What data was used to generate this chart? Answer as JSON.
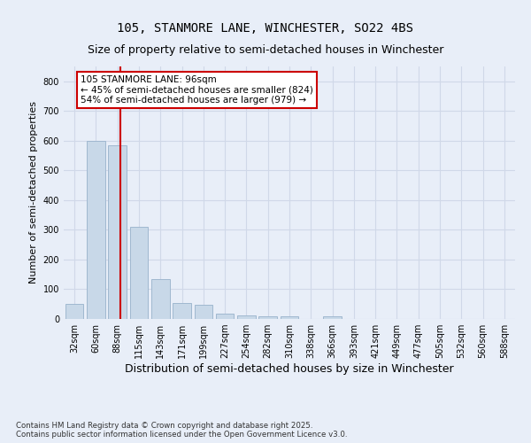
{
  "title_line1": "105, STANMORE LANE, WINCHESTER, SO22 4BS",
  "title_line2": "Size of property relative to semi-detached houses in Winchester",
  "xlabel": "Distribution of semi-detached houses by size in Winchester",
  "ylabel": "Number of semi-detached properties",
  "bin_labels": [
    "32sqm",
    "60sqm",
    "88sqm",
    "115sqm",
    "143sqm",
    "171sqm",
    "199sqm",
    "227sqm",
    "254sqm",
    "282sqm",
    "310sqm",
    "338sqm",
    "366sqm",
    "393sqm",
    "421sqm",
    "449sqm",
    "477sqm",
    "505sqm",
    "532sqm",
    "560sqm",
    "588sqm"
  ],
  "bin_values": [
    50,
    600,
    585,
    310,
    135,
    55,
    48,
    18,
    13,
    10,
    10,
    0,
    10,
    0,
    0,
    0,
    0,
    0,
    0,
    0,
    0
  ],
  "bar_color": "#c8d8e8",
  "bar_edge_color": "#a0b8d0",
  "grid_color": "#d0d8e8",
  "red_line_x": 2.15,
  "red_line_color": "#cc0000",
  "annotation_text": "105 STANMORE LANE: 96sqm\n← 45% of semi-detached houses are smaller (824)\n54% of semi-detached houses are larger (979) →",
  "annotation_box_color": "#ffffff",
  "annotation_box_edge_color": "#cc0000",
  "ylim": [
    0,
    850
  ],
  "yticks": [
    0,
    100,
    200,
    300,
    400,
    500,
    600,
    700,
    800
  ],
  "footer_text": "Contains HM Land Registry data © Crown copyright and database right 2025.\nContains public sector information licensed under the Open Government Licence v3.0.",
  "bg_color": "#e8eef8",
  "title1_fontsize": 10,
  "title2_fontsize": 9,
  "ylabel_fontsize": 8,
  "xlabel_fontsize": 9,
  "tick_fontsize": 7,
  "annot_fontsize": 7.5,
  "footer_fontsize": 6.2
}
